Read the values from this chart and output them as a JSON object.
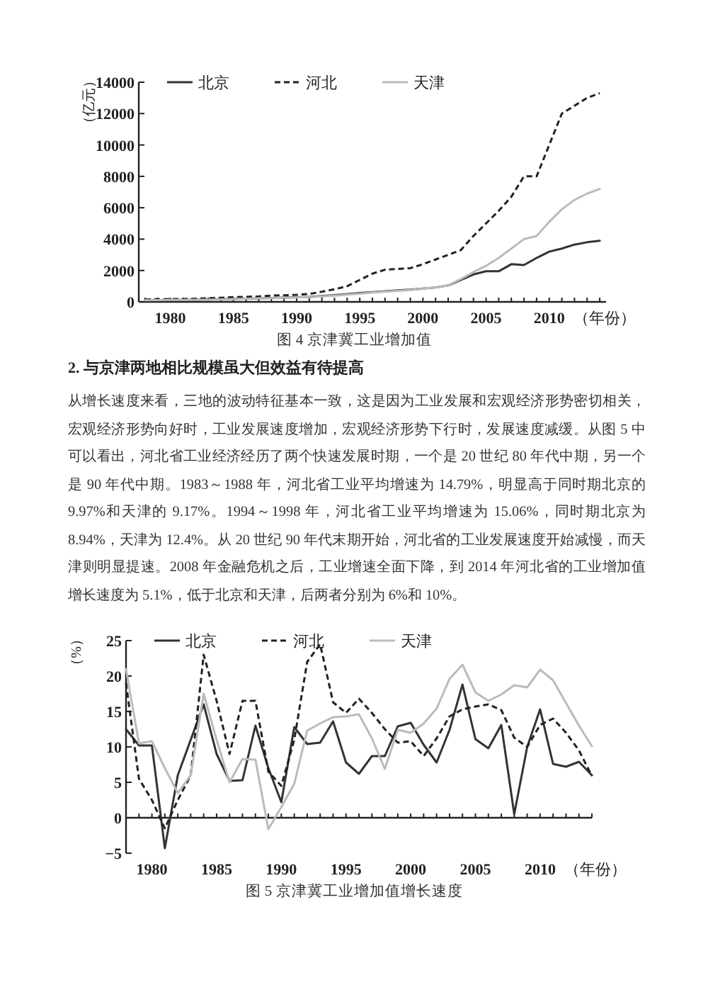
{
  "chart_data": [
    {
      "type": "line",
      "ylabel": "（亿元）",
      "xlabel": "（年份）",
      "legend": "top",
      "grid": false,
      "marker": "none",
      "x": [
        1978,
        1979,
        1980,
        1981,
        1982,
        1983,
        1984,
        1985,
        1986,
        1987,
        1988,
        1989,
        1990,
        1991,
        1992,
        1993,
        1994,
        1995,
        1996,
        1997,
        1998,
        1999,
        2000,
        2001,
        2002,
        2003,
        2004,
        2005,
        2006,
        2007,
        2008,
        2009,
        2010,
        2011,
        2012,
        2013,
        2014
      ],
      "xlim": [
        1977.5,
        2014.5
      ],
      "ylim": [
        0,
        14000
      ],
      "yticks": [
        0,
        2000,
        4000,
        6000,
        8000,
        10000,
        12000,
        14000
      ],
      "xticks": [
        {
          "value": 1978,
          "label": null
        },
        {
          "value": 1979,
          "label": null
        },
        1980,
        {
          "value": 1981,
          "label": null
        },
        {
          "value": 1982,
          "label": null
        },
        {
          "value": 1983,
          "label": null
        },
        {
          "value": 1984,
          "label": null
        },
        1985,
        {
          "value": 1986,
          "label": null
        },
        {
          "value": 1987,
          "label": null
        },
        {
          "value": 1988,
          "label": null
        },
        {
          "value": 1989,
          "label": null
        },
        1990,
        {
          "value": 1991,
          "label": null
        },
        {
          "value": 1992,
          "label": null
        },
        {
          "value": 1993,
          "label": null
        },
        {
          "value": 1994,
          "label": null
        },
        1995,
        {
          "value": 1996,
          "label": null
        },
        {
          "value": 1997,
          "label": null
        },
        {
          "value": 1998,
          "label": null
        },
        {
          "value": 1999,
          "label": null
        },
        2000,
        {
          "value": 2001,
          "label": null
        },
        {
          "value": 2002,
          "label": null
        },
        {
          "value": 2003,
          "label": null
        },
        {
          "value": 2004,
          "label": null
        },
        2005,
        {
          "value": 2006,
          "label": null
        },
        {
          "value": 2007,
          "label": null
        },
        {
          "value": 2008,
          "label": null
        },
        {
          "value": 2009,
          "label": null
        },
        2010,
        {
          "value": 2011,
          "label": null
        },
        {
          "value": 2012,
          "label": null
        },
        {
          "value": 2013,
          "label": null
        },
        {
          "value": 2014,
          "label": null
        }
      ],
      "series": [
        {
          "name": "北京",
          "color": "#333333",
          "line_style": "solid",
          "values": [
            100,
            110,
            120,
            120,
            130,
            150,
            170,
            190,
            200,
            220,
            250,
            270,
            290,
            320,
            370,
            430,
            500,
            560,
            620,
            680,
            730,
            780,
            850,
            920,
            1050,
            1400,
            1750,
            1950,
            1950,
            2400,
            2350,
            2800,
            3200,
            3400,
            3650,
            3800,
            3900
          ]
        },
        {
          "name": "河北",
          "color": "#222222",
          "line_style": "dashed",
          "values": [
            150,
            170,
            180,
            180,
            200,
            230,
            260,
            300,
            320,
            350,
            400,
            420,
            450,
            500,
            650,
            800,
            1000,
            1400,
            1800,
            2050,
            2100,
            2150,
            2400,
            2700,
            3000,
            3300,
            4200,
            5000,
            5800,
            6700,
            8000,
            8000,
            10000,
            12000,
            12500,
            13000,
            13300
          ]
        },
        {
          "name": "天津",
          "color": "#bbbbbb",
          "line_style": "solid",
          "values": [
            100,
            110,
            120,
            120,
            130,
            140,
            160,
            180,
            200,
            220,
            240,
            260,
            280,
            310,
            350,
            400,
            460,
            520,
            600,
            650,
            700,
            760,
            850,
            920,
            1050,
            1450,
            1900,
            2300,
            2800,
            3400,
            4000,
            4200,
            5100,
            5900,
            6500,
            6900,
            7200
          ]
        }
      ],
      "annotations": [
        "图 4  京津冀工业增加值"
      ]
    },
    {
      "type": "other",
      "title": "2. 与京津两地相比规模虽大但效益有待提高",
      "annotations": [
        "从增长速度来看，三地的波动特征基本一致，这是因为工业发展和宏观经济形势密切相关，宏观经济形势向好时，工业发展速度增加，宏观经济形势下行时，发展速度减缓。从图 5 中可以看出，河北省工业经济经历了两个快速发展时期，一个是 20 世纪 80 年代中期，另一个是 90 年代中期。1983～1988 年，河北省工业平均增速为 14.79%，明显高于同时期北京的 9.97%和天津的 9.17%。1994～1998 年，河北省工业平均增速为 15.06%，同时期北京为 8.94%，天津为 12.4%。从 20 世纪 90 年代末期开始，河北省的工业发展速度开始减慢，而天津则明显提速。2008 年金融危机之后，工业增速全面下降，到 2014 年河北省的工业增加值增长速度为 5.1%，低于北京和天津，后两者分别为 6%和 10%。"
      ]
    },
    {
      "type": "line",
      "ylabel": "（%）",
      "xlabel": "（年份）",
      "legend": "top",
      "grid": false,
      "marker": "none",
      "x": [
        1978,
        1979,
        1980,
        1981,
        1982,
        1983,
        1984,
        1985,
        1986,
        1987,
        1988,
        1989,
        1990,
        1991,
        1992,
        1993,
        1994,
        1995,
        1996,
        1997,
        1998,
        1999,
        2000,
        2001,
        2002,
        2003,
        2004,
        2005,
        2006,
        2007,
        2008,
        2009,
        2010,
        2011,
        2012,
        2013,
        2014
      ],
      "xlim": [
        1978,
        2014
      ],
      "ylim": [
        -5,
        25
      ],
      "ref_lines": [
        {
          "axis": "y",
          "value": 0,
          "color": "#222222"
        }
      ],
      "yticks": [
        {
          "value": -5,
          "label": "−5"
        },
        0,
        5,
        10,
        15,
        20,
        25
      ],
      "xticks": [
        {
          "value": 1978,
          "label": null
        },
        {
          "value": 1979,
          "label": null
        },
        1980,
        {
          "value": 1981,
          "label": null
        },
        {
          "value": 1982,
          "label": null
        },
        {
          "value": 1983,
          "label": null
        },
        {
          "value": 1984,
          "label": null
        },
        1985,
        {
          "value": 1986,
          "label": null
        },
        {
          "value": 1987,
          "label": null
        },
        {
          "value": 1988,
          "label": null
        },
        {
          "value": 1989,
          "label": null
        },
        1990,
        {
          "value": 1991,
          "label": null
        },
        {
          "value": 1992,
          "label": null
        },
        {
          "value": 1993,
          "label": null
        },
        {
          "value": 1994,
          "label": null
        },
        1995,
        {
          "value": 1996,
          "label": null
        },
        {
          "value": 1997,
          "label": null
        },
        {
          "value": 1998,
          "label": null
        },
        {
          "value": 1999,
          "label": null
        },
        2000,
        {
          "value": 2001,
          "label": null
        },
        {
          "value": 2002,
          "label": null
        },
        {
          "value": 2003,
          "label": null
        },
        {
          "value": 2004,
          "label": null
        },
        2005,
        {
          "value": 2006,
          "label": null
        },
        {
          "value": 2007,
          "label": null
        },
        {
          "value": 2008,
          "label": null
        },
        {
          "value": 2009,
          "label": null
        },
        2010,
        {
          "value": 2011,
          "label": null
        },
        {
          "value": 2012,
          "label": null
        },
        {
          "value": 2013,
          "label": null
        },
        {
          "value": 2014,
          "label": null
        }
      ],
      "series": [
        {
          "name": "北京",
          "color": "#333333",
          "line_style": "solid",
          "values": [
            12.5,
            10.2,
            10.2,
            -4.3,
            6,
            11,
            16,
            9,
            5.2,
            5.3,
            13,
            7,
            2.2,
            12.8,
            10.4,
            10.6,
            13.6,
            7.8,
            6.2,
            8.7,
            8.7,
            12.9,
            13.4,
            10.3,
            7.8,
            12.4,
            18.8,
            11.1,
            9.8,
            13.1,
            0.5,
            10,
            15.3,
            7.6,
            7.2,
            7.9,
            6
          ]
        },
        {
          "name": "河北",
          "color": "#222222",
          "line_style": "dashed",
          "values": [
            19,
            5.5,
            2.5,
            -1.5,
            2.5,
            6,
            23,
            16.5,
            9,
            16.5,
            16.5,
            6.5,
            4.5,
            11,
            22,
            24.5,
            16.3,
            14.8,
            16.8,
            14.8,
            12.5,
            10.6,
            10.8,
            8.7,
            11.2,
            14.3,
            15.3,
            15.7,
            16,
            15.2,
            11.3,
            10,
            13.1,
            14,
            12,
            9.5,
            5.9
          ]
        },
        {
          "name": "天津",
          "color": "#bbbbbb",
          "line_style": "solid",
          "values": [
            21,
            10.5,
            10.8,
            7,
            3.5,
            6,
            17.5,
            11,
            5,
            8.3,
            8.2,
            -1.6,
            1.5,
            4.8,
            12.3,
            13.3,
            14.2,
            14.3,
            14.6,
            11.2,
            6.9,
            12.4,
            12,
            13.3,
            15.4,
            19.6,
            21.6,
            17.7,
            16.5,
            17.4,
            18.7,
            18.4,
            20.9,
            19.4,
            16.2,
            13,
            10.1
          ]
        }
      ],
      "annotations": [
        "图 5  京津冀工业增加值增长速度"
      ]
    }
  ]
}
